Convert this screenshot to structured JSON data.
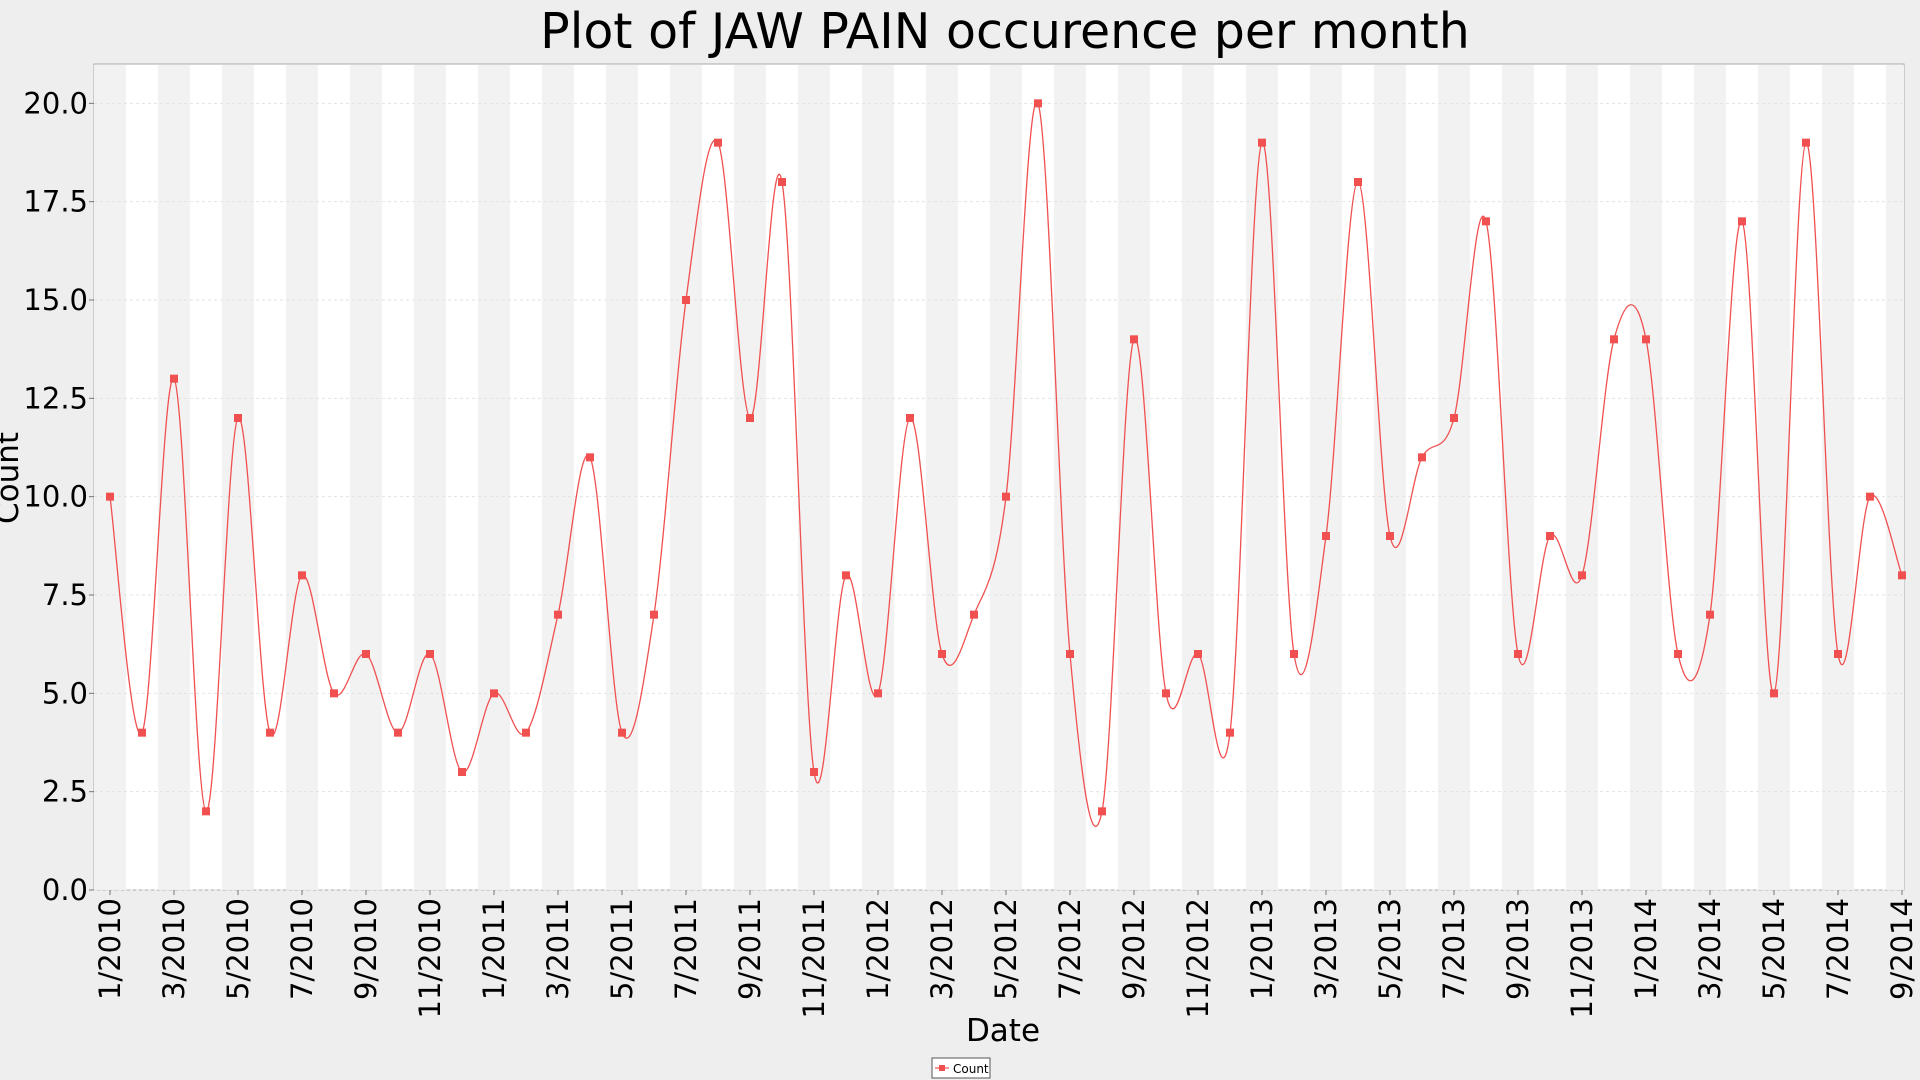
{
  "chart_data": {
    "type": "line",
    "title": "Plot of JAW PAIN occurence per month",
    "xlabel": "Date",
    "ylabel": "Count",
    "ylim": [
      0,
      21
    ],
    "y_ticks": [
      "0.0",
      "2.5",
      "5.0",
      "7.5",
      "10.0",
      "12.5",
      "15.0",
      "17.5",
      "20.0"
    ],
    "x_tick_labels": [
      "1/2010",
      "3/2010",
      "5/2010",
      "7/2010",
      "9/2010",
      "11/2010",
      "1/2011",
      "3/2011",
      "5/2011",
      "7/2011",
      "9/2011",
      "11/2011",
      "1/2012",
      "3/2012",
      "5/2012",
      "7/2012",
      "9/2012",
      "11/2012",
      "1/2013",
      "3/2013",
      "5/2013",
      "7/2013",
      "9/2013",
      "11/2013",
      "1/2014",
      "3/2014",
      "5/2014",
      "7/2014",
      "9/2014"
    ],
    "grid": true,
    "legend_position": "bottom-center",
    "series": [
      {
        "name": "Count",
        "color": "#f05050",
        "x": [
          "1/2010",
          "2/2010",
          "3/2010",
          "4/2010",
          "5/2010",
          "6/2010",
          "7/2010",
          "8/2010",
          "9/2010",
          "10/2010",
          "11/2010",
          "12/2010",
          "1/2011",
          "2/2011",
          "3/2011",
          "4/2011",
          "5/2011",
          "6/2011",
          "7/2011",
          "8/2011",
          "9/2011",
          "10/2011",
          "11/2011",
          "12/2011",
          "1/2012",
          "2/2012",
          "3/2012",
          "4/2012",
          "5/2012",
          "6/2012",
          "7/2012",
          "8/2012",
          "9/2012",
          "10/2012",
          "11/2012",
          "12/2012",
          "1/2013",
          "2/2013",
          "3/2013",
          "4/2013",
          "5/2013",
          "6/2013",
          "7/2013",
          "8/2013",
          "9/2013",
          "10/2013",
          "11/2013",
          "12/2013",
          "1/2014",
          "2/2014",
          "3/2014",
          "4/2014",
          "5/2014",
          "6/2014",
          "7/2014",
          "8/2014",
          "9/2014"
        ],
        "values": [
          10,
          4,
          13,
          2,
          12,
          4,
          8,
          5,
          6,
          4,
          6,
          3,
          5,
          4,
          7,
          11,
          4,
          7,
          15,
          19,
          12,
          18,
          3,
          8,
          5,
          12,
          6,
          7,
          10,
          20,
          6,
          2,
          14,
          5,
          6,
          4,
          19,
          6,
          9,
          18,
          9,
          11,
          12,
          17,
          6,
          9,
          8,
          14,
          14,
          6,
          7,
          17,
          5,
          19,
          6,
          10,
          8
        ]
      }
    ]
  }
}
